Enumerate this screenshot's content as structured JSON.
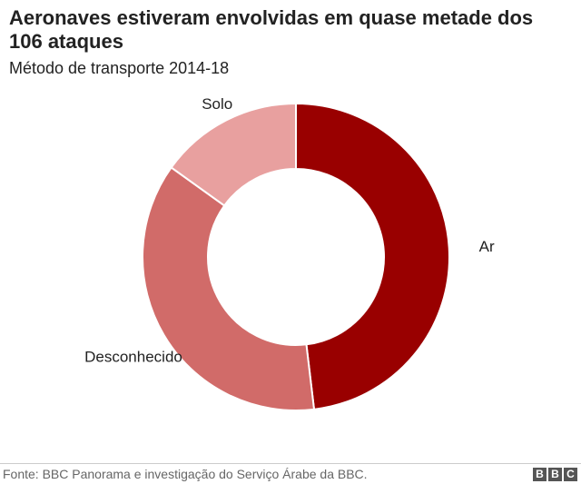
{
  "header": {
    "title": "Aeronaves estiveram envolvidas em quase metade dos 106 ataques",
    "subtitle": "Método de transporte 2014-18"
  },
  "footer": {
    "source": "Fonte: BBC Panorama e investigação do Serviço Árabe da BBC.",
    "logo_letters": [
      "B",
      "B",
      "C"
    ]
  },
  "chart_data": {
    "type": "pie",
    "donut": true,
    "title": "Aeronaves estiveram envolvidas em quase metade dos 106 ataques",
    "subtitle": "Método de transporte 2014-18",
    "slices": [
      {
        "label": "Ar",
        "value": 51,
        "color": "#990000"
      },
      {
        "label": "Desconhecido",
        "value": 39,
        "color": "#d16b69"
      },
      {
        "label": "Solo",
        "value": 16,
        "color": "#e8a09f"
      }
    ],
    "total": 106
  }
}
